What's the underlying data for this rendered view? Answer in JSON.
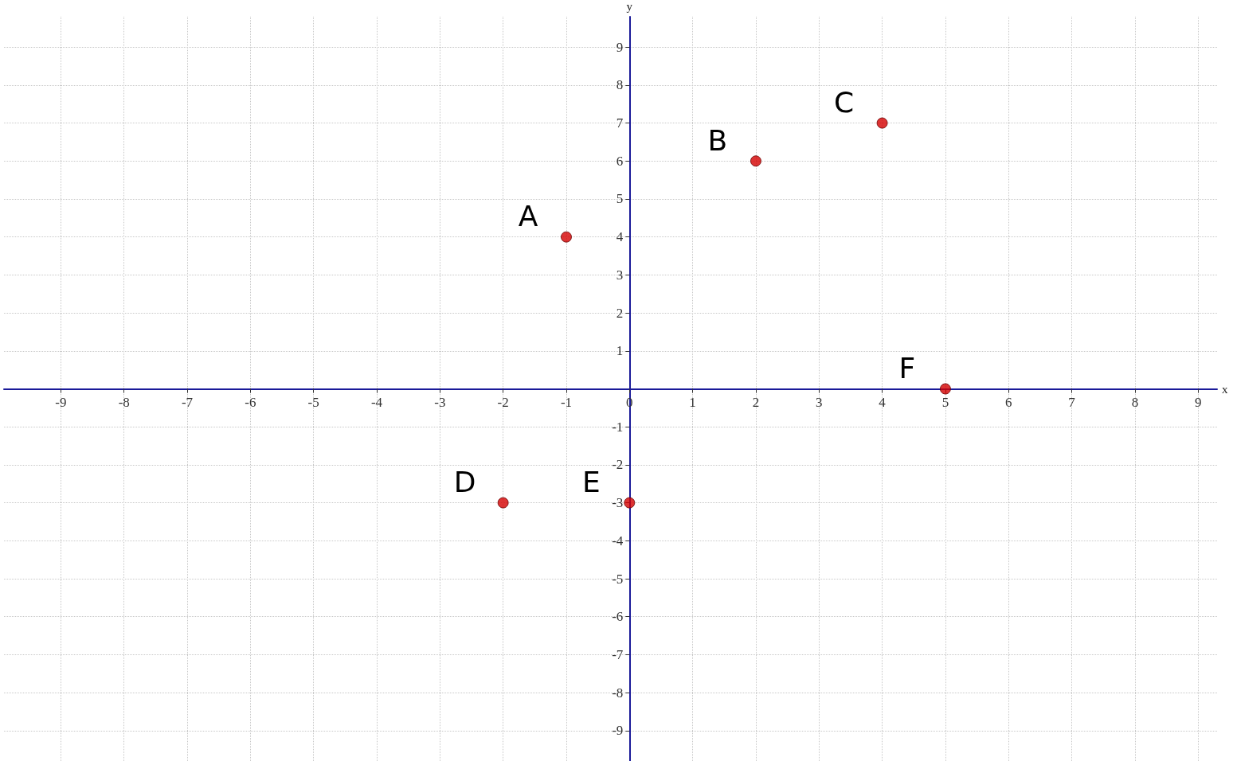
{
  "chart_data": {
    "type": "scatter",
    "xlabel": "x",
    "ylabel": "y",
    "x": [
      -1,
      2,
      4,
      -2,
      0,
      5
    ],
    "values": [
      4,
      6,
      7,
      -3,
      -3,
      0
    ],
    "color": "#d40000",
    "marker": "circle",
    "xlim": [
      -9.9,
      9.3
    ],
    "ylim": [
      -9.8,
      9.8
    ],
    "xticks": [
      -9,
      -8,
      -7,
      -6,
      -5,
      -4,
      -3,
      -2,
      -1,
      0,
      1,
      2,
      3,
      4,
      5,
      6,
      7,
      8,
      9
    ],
    "yticks": [
      -9,
      -8,
      -7,
      -6,
      -5,
      -4,
      -3,
      -2,
      -1,
      1,
      2,
      3,
      4,
      5,
      6,
      7,
      8,
      9
    ],
    "grid": true,
    "annotations": [
      {
        "text": "A",
        "x": -1,
        "y": 4
      },
      {
        "text": "B",
        "x": 2,
        "y": 6
      },
      {
        "text": "C",
        "x": 4,
        "y": 7
      },
      {
        "text": "D",
        "x": -2,
        "y": -3
      },
      {
        "text": "E",
        "x": 0,
        "y": -3
      },
      {
        "text": "F",
        "x": 5,
        "y": 0
      }
    ]
  }
}
